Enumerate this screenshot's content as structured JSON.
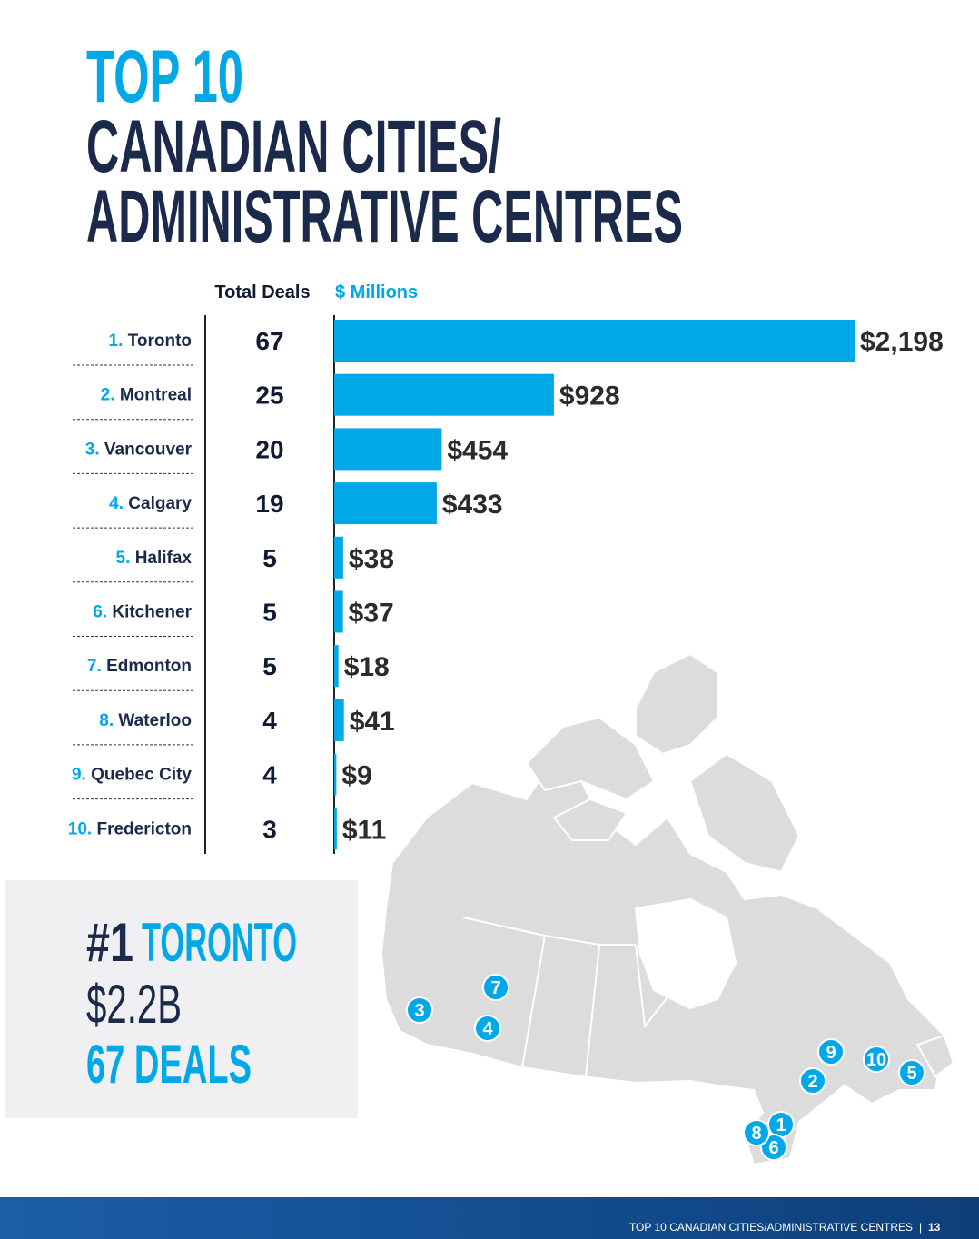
{
  "title": {
    "line1": "TOP 10",
    "line2": "CANADIAN CITIES/",
    "line3": "ADMINISTRATIVE CENTRES"
  },
  "chart_data": {
    "type": "bar",
    "orientation": "horizontal",
    "color": "#00a8e8",
    "deals_header": "Total Deals",
    "value_header": "$ Millions",
    "ranks": [
      "1.",
      "2.",
      "3.",
      "4.",
      "5.",
      "6.",
      "7.",
      "8.",
      "9.",
      "10."
    ],
    "categories": [
      "Toronto",
      "Montreal",
      "Vancouver",
      "Calgary",
      "Halifax",
      "Kitchener",
      "Edmonton",
      "Waterloo",
      "Quebec City",
      "Fredericton"
    ],
    "deals": [
      67,
      25,
      20,
      19,
      5,
      5,
      5,
      4,
      4,
      3
    ],
    "values": [
      2198,
      928,
      454,
      433,
      38,
      37,
      18,
      41,
      9,
      11
    ],
    "value_labels": [
      "$2,198",
      "$928",
      "$454",
      "$433",
      "$38",
      "$37",
      "$18",
      "$41",
      "$9",
      "$11"
    ]
  },
  "map_pins": [
    "1",
    "2",
    "3",
    "4",
    "5",
    "6",
    "7",
    "8",
    "9",
    "10"
  ],
  "callout": {
    "rank": "#1",
    "city": "TORONTO",
    "amount": "$2.2B",
    "deals": "67 DEALS"
  },
  "footer": {
    "text": "TOP 10 CANADIAN CITIES/ADMINISTRATIVE CENTRES",
    "page": "13"
  }
}
